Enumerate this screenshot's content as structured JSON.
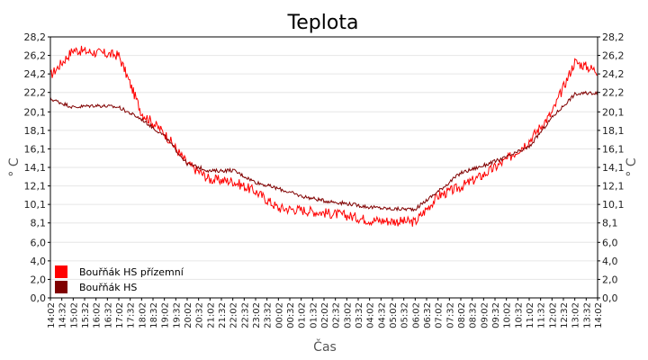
{
  "chart_data": {
    "type": "line",
    "title": "Teplota",
    "xlabel": "Čas",
    "ylabel": "° C",
    "ylim": [
      0,
      28.2
    ],
    "yticks": [
      "0,0",
      "2,0",
      "4,0",
      "6,0",
      "8,1",
      "10,1",
      "12,1",
      "14,1",
      "16,1",
      "18,1",
      "20,1",
      "22,2",
      "24,2",
      "26,2",
      "28,2"
    ],
    "ytick_values": [
      0,
      2,
      4,
      6,
      8.1,
      10.1,
      12.1,
      14.1,
      16.1,
      18.1,
      20.1,
      22.2,
      24.2,
      26.2,
      28.2
    ],
    "xticks": [
      "14:02",
      "14:32",
      "15:02",
      "15:32",
      "16:02",
      "16:32",
      "17:02",
      "17:32",
      "18:02",
      "18:32",
      "19:02",
      "19:32",
      "20:02",
      "20:32",
      "21:02",
      "21:32",
      "22:02",
      "22:32",
      "23:02",
      "23:32",
      "00:02",
      "00:32",
      "01:02",
      "01:32",
      "02:02",
      "02:32",
      "03:02",
      "03:32",
      "04:02",
      "04:32",
      "05:02",
      "05:32",
      "06:02",
      "06:32",
      "07:02",
      "07:32",
      "08:02",
      "08:32",
      "09:02",
      "09:32",
      "10:02",
      "10:32",
      "11:02",
      "11:32",
      "12:02",
      "12:32",
      "13:02",
      "13:32",
      "14:02"
    ],
    "grid": true,
    "legend_position": "bottom-left",
    "x": [
      "14:02",
      "15:02",
      "16:02",
      "17:02",
      "18:02",
      "19:02",
      "20:02",
      "21:02",
      "22:02",
      "23:02",
      "00:02",
      "01:02",
      "02:02",
      "03:02",
      "04:02",
      "05:02",
      "06:02",
      "07:02",
      "08:02",
      "09:02",
      "10:02",
      "11:02",
      "12:02",
      "13:02",
      "14:02"
    ],
    "series": [
      {
        "name": "Bouřňák HS přízemní",
        "color": "#ff0000",
        "values": [
          24.0,
          26.8,
          26.5,
          26.2,
          20.0,
          17.8,
          14.5,
          12.8,
          12.6,
          11.5,
          9.7,
          9.5,
          9.2,
          8.9,
          8.4,
          8.3,
          8.2,
          11.0,
          12.0,
          13.3,
          14.9,
          17.0,
          20.0,
          25.5,
          24.5
        ]
      },
      {
        "name": "Bouřňák HS",
        "color": "#800000",
        "values": [
          21.5,
          20.6,
          20.8,
          20.6,
          19.3,
          17.5,
          14.5,
          13.7,
          13.8,
          12.5,
          11.8,
          11.0,
          10.5,
          10.2,
          9.8,
          9.6,
          9.6,
          11.5,
          13.5,
          14.3,
          15.2,
          16.3,
          19.5,
          22.0,
          22.2
        ]
      }
    ]
  }
}
